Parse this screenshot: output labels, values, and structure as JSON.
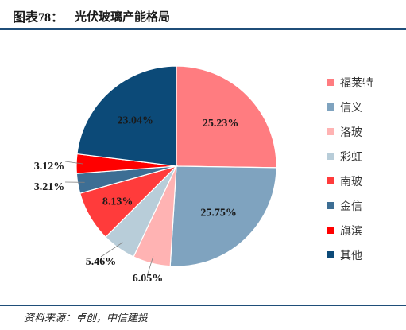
{
  "header": {
    "figure_label": "图表78：",
    "title": "光伏玻璃产能格局"
  },
  "source": "资料来源：卓创，中信建投",
  "chart_data": {
    "type": "pie",
    "title": "光伏玻璃产能格局",
    "legend_position": "right",
    "slices": [
      {
        "name": "福莱特",
        "value": 25.23,
        "label": "25.23%",
        "color": "#ff7c80"
      },
      {
        "name": "信义",
        "value": 25.75,
        "label": "25.75%",
        "color": "#7fa3bf"
      },
      {
        "name": "洛玻",
        "value": 6.05,
        "label": "6.05%",
        "color": "#ffb3b3"
      },
      {
        "name": "彩虹",
        "value": 5.46,
        "label": "5.46%",
        "color": "#b8cdd9"
      },
      {
        "name": "南玻",
        "value": 8.13,
        "label": "8.13%",
        "color": "#ff3b3b"
      },
      {
        "name": "金信",
        "value": 3.21,
        "label": "3.21%",
        "color": "#3d6e94"
      },
      {
        "name": "旗滨",
        "value": 3.12,
        "label": "3.12%",
        "color": "#ff0000"
      },
      {
        "name": "其他",
        "value": 23.04,
        "label": "23.04%",
        "color": "#0c4a78"
      }
    ]
  }
}
